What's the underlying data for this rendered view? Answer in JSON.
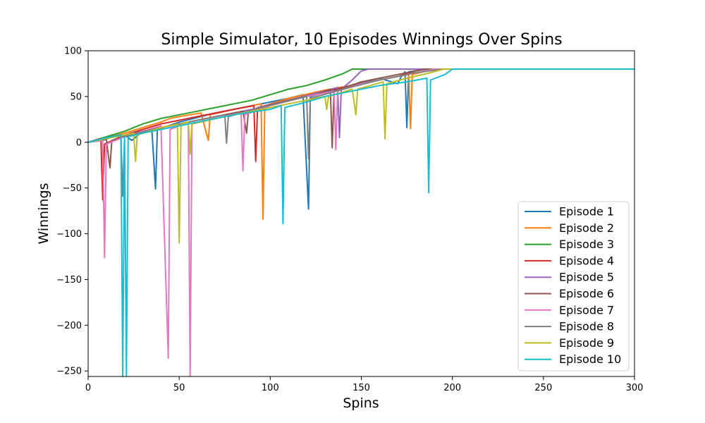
{
  "chart_data": {
    "type": "line",
    "title": "Simple Simulator, 10 Episodes Winnings Over Spins",
    "xlabel": "Spins",
    "ylabel": "Winnings",
    "xlim": [
      0,
      300
    ],
    "ylim": [
      -256,
      100
    ],
    "x_ticks": [
      0,
      50,
      100,
      150,
      200,
      250,
      300
    ],
    "y_ticks": [
      100,
      50,
      0,
      -50,
      -100,
      -150,
      -200,
      -250
    ],
    "x_tick_labels": [
      "0",
      "50",
      "100",
      "150",
      "200",
      "250",
      "300"
    ],
    "y_tick_labels": [
      "100",
      "50",
      "0",
      "−50",
      "−100",
      "−150",
      "−200",
      "−250"
    ],
    "legend_position": "lower-right",
    "grid": false,
    "series": [
      {
        "name": "Episode 1",
        "color": "#1f77b4",
        "points": [
          [
            0,
            0
          ],
          [
            8,
            2
          ],
          [
            12,
            5
          ],
          [
            20,
            8
          ],
          [
            24,
            2
          ],
          [
            30,
            12
          ],
          [
            35,
            14
          ],
          [
            37,
            -51
          ],
          [
            38,
            14
          ],
          [
            50,
            22
          ],
          [
            70,
            32
          ],
          [
            90,
            40
          ],
          [
            110,
            48
          ],
          [
            118,
            52
          ],
          [
            121,
            -73
          ],
          [
            122,
            50
          ],
          [
            140,
            60
          ],
          [
            160,
            70
          ],
          [
            170,
            64
          ],
          [
            172,
            72
          ],
          [
            174,
            77
          ],
          [
            175,
            16
          ],
          [
            176,
            77
          ],
          [
            186,
            80
          ],
          [
            300,
            80
          ]
        ]
      },
      {
        "name": "Episode 2",
        "color": "#ff7f0e",
        "points": [
          [
            0,
            0
          ],
          [
            10,
            5
          ],
          [
            20,
            10
          ],
          [
            30,
            16
          ],
          [
            40,
            22
          ],
          [
            45,
            26
          ],
          [
            50,
            28
          ],
          [
            62,
            32
          ],
          [
            66,
            2
          ],
          [
            67,
            30
          ],
          [
            80,
            36
          ],
          [
            95,
            42
          ],
          [
            96,
            -84
          ],
          [
            97,
            40
          ],
          [
            110,
            48
          ],
          [
            130,
            57
          ],
          [
            150,
            64
          ],
          [
            165,
            70
          ],
          [
            176,
            74
          ],
          [
            177,
            15
          ],
          [
            178,
            74
          ],
          [
            190,
            80
          ],
          [
            300,
            80
          ]
        ]
      },
      {
        "name": "Episode 3",
        "color": "#2ca02c",
        "points": [
          [
            0,
            0
          ],
          [
            10,
            6
          ],
          [
            20,
            12
          ],
          [
            30,
            20
          ],
          [
            40,
            26
          ],
          [
            50,
            30
          ],
          [
            60,
            34
          ],
          [
            70,
            38
          ],
          [
            80,
            42
          ],
          [
            90,
            46
          ],
          [
            100,
            52
          ],
          [
            110,
            58
          ],
          [
            120,
            62
          ],
          [
            130,
            68
          ],
          [
            140,
            75
          ],
          [
            145,
            80
          ],
          [
            300,
            80
          ]
        ]
      },
      {
        "name": "Episode 4",
        "color": "#d62728",
        "points": [
          [
            0,
            0
          ],
          [
            7,
            4
          ],
          [
            8,
            -63
          ],
          [
            9,
            -2
          ],
          [
            20,
            8
          ],
          [
            40,
            20
          ],
          [
            60,
            28
          ],
          [
            80,
            36
          ],
          [
            91,
            40
          ],
          [
            92,
            -21
          ],
          [
            93,
            38
          ],
          [
            110,
            46
          ],
          [
            130,
            56
          ],
          [
            150,
            64
          ],
          [
            170,
            72
          ],
          [
            180,
            78
          ],
          [
            185,
            80
          ],
          [
            300,
            80
          ]
        ]
      },
      {
        "name": "Episode 5",
        "color": "#9467bd",
        "points": [
          [
            0,
            0
          ],
          [
            15,
            6
          ],
          [
            30,
            12
          ],
          [
            50,
            20
          ],
          [
            70,
            28
          ],
          [
            90,
            36
          ],
          [
            110,
            46
          ],
          [
            130,
            56
          ],
          [
            137,
            60
          ],
          [
            138,
            5
          ],
          [
            139,
            58
          ],
          [
            145,
            68
          ],
          [
            150,
            78
          ],
          [
            154,
            80
          ],
          [
            300,
            80
          ]
        ]
      },
      {
        "name": "Episode 6",
        "color": "#8c564b",
        "points": [
          [
            0,
            0
          ],
          [
            10,
            3
          ],
          [
            12,
            -28
          ],
          [
            13,
            2
          ],
          [
            25,
            10
          ],
          [
            45,
            18
          ],
          [
            65,
            26
          ],
          [
            85,
            34
          ],
          [
            87,
            10
          ],
          [
            88,
            34
          ],
          [
            110,
            46
          ],
          [
            125,
            52
          ],
          [
            133,
            58
          ],
          [
            134,
            -6
          ],
          [
            135,
            56
          ],
          [
            150,
            66
          ],
          [
            170,
            74
          ],
          [
            185,
            80
          ],
          [
            300,
            80
          ]
        ]
      },
      {
        "name": "Episode 7",
        "color": "#e377c2",
        "points": [
          [
            0,
            0
          ],
          [
            8,
            2
          ],
          [
            9,
            -126
          ],
          [
            10,
            -2
          ],
          [
            20,
            6
          ],
          [
            30,
            12
          ],
          [
            40,
            18
          ],
          [
            44,
            -236
          ],
          [
            45,
            14
          ],
          [
            50,
            18
          ],
          [
            55,
            20
          ],
          [
            56,
            -256
          ],
          [
            57,
            20
          ],
          [
            70,
            26
          ],
          [
            84,
            32
          ],
          [
            85,
            -31
          ],
          [
            86,
            30
          ],
          [
            100,
            40
          ],
          [
            120,
            50
          ],
          [
            135,
            56
          ],
          [
            136,
            -8
          ],
          [
            137,
            56
          ],
          [
            150,
            64
          ],
          [
            170,
            72
          ],
          [
            190,
            80
          ],
          [
            300,
            80
          ]
        ]
      },
      {
        "name": "Episode 8",
        "color": "#7f7f7f",
        "points": [
          [
            0,
            0
          ],
          [
            10,
            4
          ],
          [
            18,
            8
          ],
          [
            19,
            -59
          ],
          [
            20,
            6
          ],
          [
            35,
            14
          ],
          [
            55,
            22
          ],
          [
            75,
            30
          ],
          [
            76,
            -1
          ],
          [
            77,
            28
          ],
          [
            95,
            38
          ],
          [
            120,
            50
          ],
          [
            121,
            -18
          ],
          [
            122,
            48
          ],
          [
            140,
            58
          ],
          [
            160,
            68
          ],
          [
            180,
            76
          ],
          [
            195,
            80
          ],
          [
            300,
            80
          ]
        ]
      },
      {
        "name": "Episode 9",
        "color": "#bcbd22",
        "points": [
          [
            0,
            0
          ],
          [
            15,
            6
          ],
          [
            25,
            10
          ],
          [
            26,
            -21
          ],
          [
            27,
            8
          ],
          [
            40,
            16
          ],
          [
            49,
            20
          ],
          [
            50,
            -110
          ],
          [
            51,
            20
          ],
          [
            55,
            22
          ],
          [
            56,
            -13
          ],
          [
            57,
            20
          ],
          [
            75,
            28
          ],
          [
            95,
            36
          ],
          [
            115,
            44
          ],
          [
            130,
            50
          ],
          [
            131,
            36
          ],
          [
            132,
            50
          ],
          [
            145,
            58
          ],
          [
            147,
            30
          ],
          [
            148,
            58
          ],
          [
            162,
            66
          ],
          [
            163,
            4
          ],
          [
            164,
            64
          ],
          [
            175,
            70
          ],
          [
            188,
            76
          ],
          [
            195,
            80
          ],
          [
            300,
            80
          ]
        ]
      },
      {
        "name": "Episode 10",
        "color": "#17becf",
        "points": [
          [
            0,
            0
          ],
          [
            10,
            5
          ],
          [
            18,
            8
          ],
          [
            19,
            -256
          ],
          [
            20,
            6
          ],
          [
            21,
            -256
          ],
          [
            22,
            6
          ],
          [
            30,
            10
          ],
          [
            45,
            16
          ],
          [
            60,
            22
          ],
          [
            80,
            30
          ],
          [
            100,
            36
          ],
          [
            106,
            40
          ],
          [
            107,
            -89
          ],
          [
            108,
            38
          ],
          [
            120,
            44
          ],
          [
            130,
            50
          ],
          [
            140,
            54
          ],
          [
            150,
            58
          ],
          [
            160,
            62
          ],
          [
            175,
            66
          ],
          [
            186,
            70
          ],
          [
            187,
            -55
          ],
          [
            188,
            68
          ],
          [
            196,
            74
          ],
          [
            200,
            80
          ],
          [
            300,
            80
          ]
        ]
      }
    ]
  }
}
